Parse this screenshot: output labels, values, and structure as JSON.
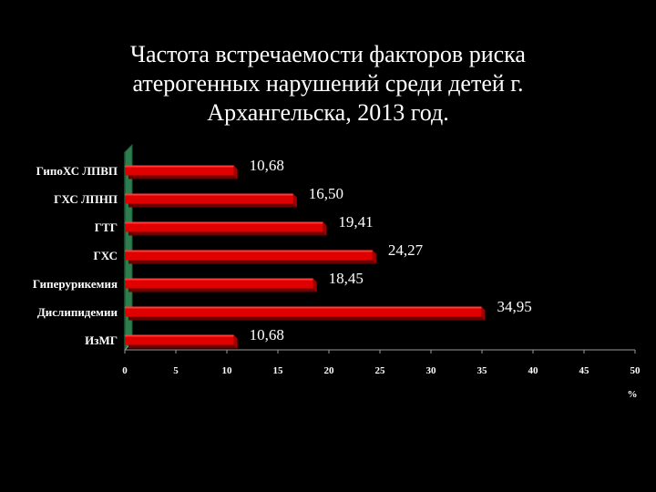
{
  "chart_data": {
    "type": "bar",
    "orientation": "horizontal",
    "title_lines": [
      "Частота встречаемости факторов риска",
      "атерогенных нарушений среди детей г.",
      "Архангельска, 2013 год."
    ],
    "categories": [
      "ГипоХС ЛПВП",
      "ГХС ЛПНП",
      "ГТГ",
      "ГХС",
      "Гиперурикемия",
      "Дислипидемии",
      "ИзМГ"
    ],
    "values": [
      10.68,
      16.5,
      19.41,
      24.27,
      18.45,
      34.95,
      10.68
    ],
    "value_labels": [
      "10,68",
      "16,50",
      "19,41",
      "24,27",
      "18,45",
      "34,95",
      "10,68"
    ],
    "xlim": [
      0,
      50
    ],
    "xticks": [
      0,
      5,
      10,
      15,
      20,
      25,
      30,
      35,
      40,
      45,
      50
    ],
    "xunit": "%",
    "grid": false,
    "legend": "none",
    "colors": {
      "bar": "#e00000",
      "bar_shadow": "#6e0000",
      "bar_top": "#ff3a3a",
      "wall": "#2e7d4f",
      "wall_dark": "#1c5a36",
      "axis": "#9a9a9a",
      "text": "#ffffff",
      "background": "#000000"
    }
  }
}
